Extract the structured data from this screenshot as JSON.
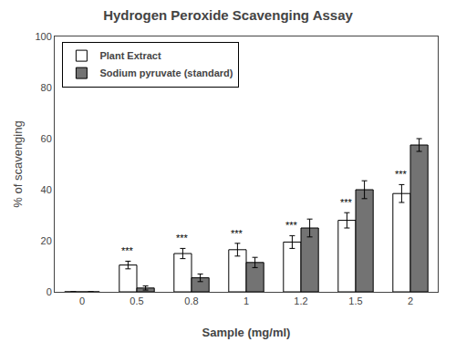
{
  "chart_data": {
    "type": "bar",
    "title": "Hydrogen Peroxide Scavenging Assay",
    "xlabel": "Sample (mg/ml)",
    "ylabel": "% of scavenging",
    "categories": [
      "0",
      "0.5",
      "0.8",
      "1",
      "1.2",
      "1.5",
      "2"
    ],
    "series": [
      {
        "name": "Plant Extract",
        "color": "#ffffff",
        "values": [
          0,
          10.5,
          15.0,
          16.5,
          19.5,
          28.0,
          38.5
        ],
        "errors": [
          0,
          1.5,
          2.0,
          2.5,
          2.5,
          3.0,
          3.5
        ]
      },
      {
        "name": "Sodium pyruvate (standard)",
        "color": "#737373",
        "values": [
          0,
          1.5,
          5.5,
          11.5,
          25.0,
          40.0,
          57.5
        ],
        "errors": [
          0,
          0.8,
          1.5,
          2.0,
          3.5,
          3.5,
          2.5
        ]
      }
    ],
    "annotations": [
      {
        "text": "***",
        "category": "0.5",
        "series": "Plant Extract"
      },
      {
        "text": "***",
        "category": "0.8",
        "series": "Plant Extract"
      },
      {
        "text": "***",
        "category": "1",
        "series": "Plant Extract"
      },
      {
        "text": "***",
        "category": "1.2",
        "series": "Plant Extract"
      },
      {
        "text": "***",
        "category": "1.5",
        "series": "Plant Extract"
      },
      {
        "text": "***",
        "category": "2",
        "series": "Plant Extract"
      }
    ],
    "ylim": [
      0,
      100
    ],
    "yticks": [
      0,
      20,
      40,
      60,
      80,
      100
    ],
    "grid": false,
    "legend": "upper left"
  }
}
